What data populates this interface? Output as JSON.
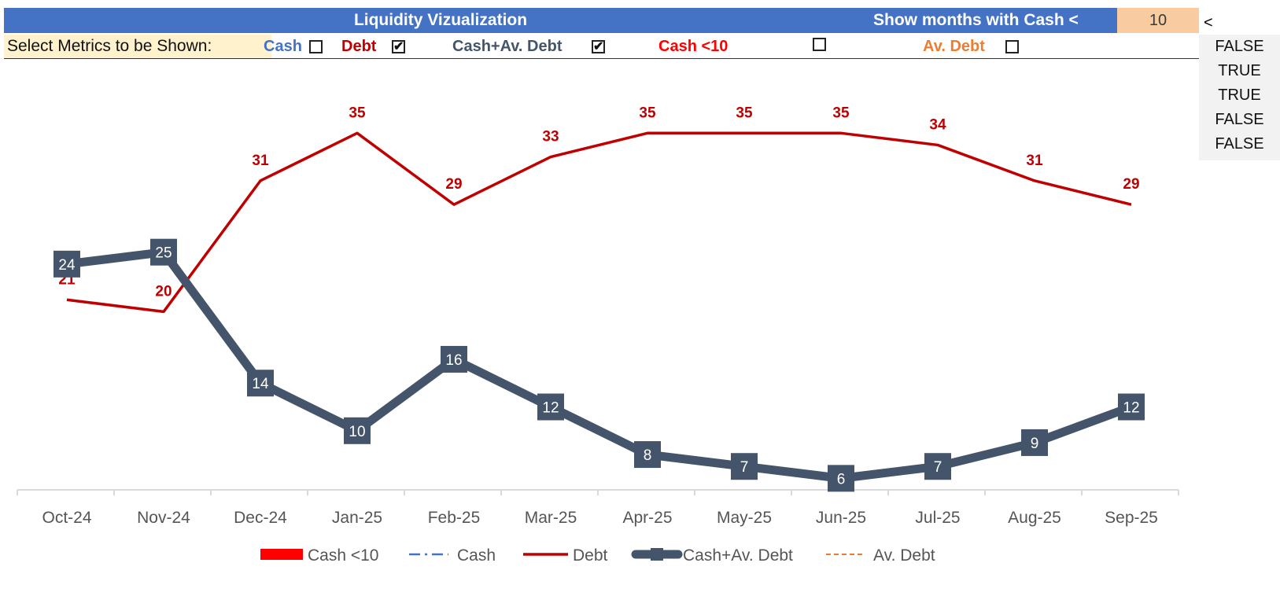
{
  "header": {
    "title": "Liquidity Vizualization",
    "threshold_label": "Show months with Cash <",
    "threshold_value": "10",
    "lt_sign": "<"
  },
  "metrics": {
    "label": "Select Metrics to be Shown:",
    "items": [
      {
        "label": "Cash",
        "checked": false,
        "color": "#4472c4"
      },
      {
        "label": "Debt",
        "checked": true,
        "color": "#c00000"
      },
      {
        "label": "Cash+Av. Debt",
        "checked": true,
        "color": "#44546a"
      },
      {
        "label": "Cash  <10",
        "checked": false,
        "color": "#ff0000"
      },
      {
        "label": "Av. Debt",
        "checked": false,
        "color": "#ed7d31"
      }
    ]
  },
  "helper_values": [
    "FALSE",
    "TRUE",
    "TRUE",
    "FALSE",
    "FALSE"
  ],
  "chart_data": {
    "type": "line",
    "categories": [
      "Oct-24",
      "Nov-24",
      "Dec-24",
      "Jan-25",
      "Feb-25",
      "Mar-25",
      "Apr-25",
      "May-25",
      "Jun-25",
      "Jul-25",
      "Aug-25",
      "Sep-25"
    ],
    "series": [
      {
        "name": "Debt",
        "color": "#c00000",
        "values": [
          21,
          20,
          31,
          35,
          29,
          33,
          35,
          35,
          35,
          34,
          31,
          29
        ]
      },
      {
        "name": "Cash+Av. Debt",
        "color": "#44546a",
        "values": [
          24,
          25,
          14,
          10,
          16,
          12,
          8,
          7,
          6,
          7,
          9,
          12
        ]
      }
    ],
    "legend": [
      {
        "name": "Cash  <10",
        "style": "bar",
        "color": "#ff0000"
      },
      {
        "name": "Cash",
        "style": "dashdot",
        "color": "#4472c4"
      },
      {
        "name": "Debt",
        "style": "line",
        "color": "#c00000"
      },
      {
        "name": "Cash+Av. Debt",
        "style": "thick-marker",
        "color": "#44546a"
      },
      {
        "name": "Av. Debt",
        "style": "dashed",
        "color": "#ed7d31"
      }
    ],
    "legend_position": "bottom",
    "ylim": [
      0,
      40
    ],
    "grid": false
  }
}
